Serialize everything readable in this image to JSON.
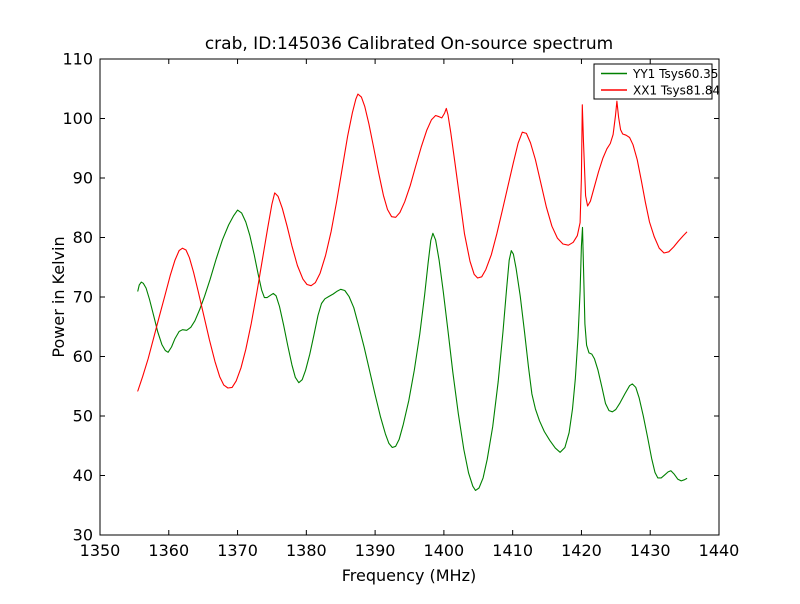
{
  "chart_data": {
    "type": "line",
    "title": "crab, ID:145036 Calibrated On-source spectrum",
    "xlabel": "Frequency (MHz)",
    "ylabel": "Power in Kelvin",
    "xlim": [
      1350,
      1440
    ],
    "ylim": [
      30,
      110
    ],
    "xticks": [
      1350,
      1360,
      1370,
      1380,
      1390,
      1400,
      1410,
      1420,
      1430,
      1440
    ],
    "yticks": [
      30,
      40,
      50,
      60,
      70,
      80,
      90,
      100,
      110
    ],
    "grid": false,
    "legend_position": "upper right",
    "background_color": "#ffffff",
    "axes_color": "#000000",
    "series": [
      {
        "name": "YY1 Tsys60.35",
        "color": "#008000",
        "points": [
          [
            1355.5,
            71.0
          ],
          [
            1355.7,
            72.0
          ],
          [
            1356.0,
            72.5
          ],
          [
            1356.3,
            72.3
          ],
          [
            1356.7,
            71.5
          ],
          [
            1357.2,
            69.6
          ],
          [
            1357.8,
            66.9
          ],
          [
            1358.4,
            64.1
          ],
          [
            1359.0,
            62.0
          ],
          [
            1359.5,
            61.0
          ],
          [
            1359.9,
            60.7
          ],
          [
            1360.4,
            61.6
          ],
          [
            1360.9,
            63.0
          ],
          [
            1361.5,
            64.2
          ],
          [
            1362.0,
            64.5
          ],
          [
            1362.6,
            64.4
          ],
          [
            1363.2,
            64.9
          ],
          [
            1363.8,
            66.0
          ],
          [
            1364.5,
            67.9
          ],
          [
            1365.2,
            70.1
          ],
          [
            1366.0,
            72.9
          ],
          [
            1366.9,
            76.4
          ],
          [
            1367.8,
            79.6
          ],
          [
            1368.7,
            82.1
          ],
          [
            1369.4,
            83.6
          ],
          [
            1370.0,
            84.6
          ],
          [
            1370.6,
            84.1
          ],
          [
            1371.2,
            82.6
          ],
          [
            1371.8,
            80.3
          ],
          [
            1372.4,
            77.2
          ],
          [
            1373.0,
            73.8
          ],
          [
            1373.5,
            71.2
          ],
          [
            1373.9,
            69.9
          ],
          [
            1374.3,
            69.9
          ],
          [
            1374.8,
            70.3
          ],
          [
            1375.2,
            70.6
          ],
          [
            1375.6,
            70.2
          ],
          [
            1376.1,
            68.4
          ],
          [
            1376.7,
            65.3
          ],
          [
            1377.3,
            61.8
          ],
          [
            1377.9,
            58.6
          ],
          [
            1378.4,
            56.5
          ],
          [
            1378.9,
            55.6
          ],
          [
            1379.4,
            56.1
          ],
          [
            1379.9,
            57.7
          ],
          [
            1380.5,
            60.4
          ],
          [
            1381.1,
            63.6
          ],
          [
            1381.7,
            66.9
          ],
          [
            1382.2,
            68.9
          ],
          [
            1382.7,
            69.7
          ],
          [
            1383.3,
            70.1
          ],
          [
            1383.9,
            70.5
          ],
          [
            1384.5,
            71.0
          ],
          [
            1385.0,
            71.3
          ],
          [
            1385.6,
            71.1
          ],
          [
            1386.2,
            70.1
          ],
          [
            1386.9,
            68.2
          ],
          [
            1387.6,
            65.2
          ],
          [
            1388.4,
            61.6
          ],
          [
            1389.2,
            57.6
          ],
          [
            1390.0,
            53.6
          ],
          [
            1390.8,
            49.8
          ],
          [
            1391.5,
            47.0
          ],
          [
            1392.0,
            45.4
          ],
          [
            1392.5,
            44.7
          ],
          [
            1393.0,
            44.9
          ],
          [
            1393.5,
            46.1
          ],
          [
            1394.1,
            48.6
          ],
          [
            1394.9,
            52.6
          ],
          [
            1395.7,
            57.7
          ],
          [
            1396.5,
            63.8
          ],
          [
            1397.2,
            70.3
          ],
          [
            1397.7,
            75.7
          ],
          [
            1398.1,
            79.5
          ],
          [
            1398.4,
            80.7
          ],
          [
            1398.8,
            79.6
          ],
          [
            1399.3,
            76.2
          ],
          [
            1399.9,
            71.0
          ],
          [
            1400.6,
            64.3
          ],
          [
            1401.3,
            57.4
          ],
          [
            1402.1,
            50.4
          ],
          [
            1402.9,
            44.4
          ],
          [
            1403.6,
            40.4
          ],
          [
            1404.2,
            38.2
          ],
          [
            1404.6,
            37.5
          ],
          [
            1405.1,
            37.9
          ],
          [
            1405.7,
            39.6
          ],
          [
            1406.3,
            42.7
          ],
          [
            1407.1,
            48.2
          ],
          [
            1407.9,
            55.8
          ],
          [
            1408.6,
            64.2
          ],
          [
            1409.1,
            71.2
          ],
          [
            1409.5,
            76.2
          ],
          [
            1409.8,
            77.8
          ],
          [
            1410.1,
            77.2
          ],
          [
            1410.5,
            74.8
          ],
          [
            1411.1,
            70.2
          ],
          [
            1411.7,
            64.3
          ],
          [
            1412.3,
            58.2
          ],
          [
            1412.8,
            53.7
          ],
          [
            1413.3,
            51.2
          ],
          [
            1413.9,
            49.2
          ],
          [
            1414.6,
            47.4
          ],
          [
            1415.4,
            45.9
          ],
          [
            1416.2,
            44.6
          ],
          [
            1416.9,
            43.9
          ],
          [
            1417.6,
            44.7
          ],
          [
            1418.2,
            47.2
          ],
          [
            1418.7,
            51.2
          ],
          [
            1419.1,
            56.2
          ],
          [
            1419.5,
            63.2
          ],
          [
            1419.8,
            71.0
          ],
          [
            1420.0,
            78.5
          ],
          [
            1420.15,
            81.7
          ],
          [
            1420.3,
            75.0
          ],
          [
            1420.5,
            65.5
          ],
          [
            1420.75,
            61.9
          ],
          [
            1421.1,
            60.6
          ],
          [
            1421.5,
            60.4
          ],
          [
            1421.9,
            59.6
          ],
          [
            1422.4,
            57.7
          ],
          [
            1423.0,
            54.7
          ],
          [
            1423.5,
            52.1
          ],
          [
            1424.0,
            50.9
          ],
          [
            1424.5,
            50.7
          ],
          [
            1425.0,
            51.1
          ],
          [
            1425.6,
            52.2
          ],
          [
            1426.3,
            53.7
          ],
          [
            1427.0,
            55.1
          ],
          [
            1427.4,
            55.4
          ],
          [
            1427.9,
            54.8
          ],
          [
            1428.4,
            53.0
          ],
          [
            1429.0,
            50.0
          ],
          [
            1429.6,
            46.5
          ],
          [
            1430.2,
            42.9
          ],
          [
            1430.7,
            40.5
          ],
          [
            1431.1,
            39.6
          ],
          [
            1431.6,
            39.6
          ],
          [
            1432.1,
            40.1
          ],
          [
            1432.6,
            40.6
          ],
          [
            1433.0,
            40.8
          ],
          [
            1433.5,
            40.2
          ],
          [
            1434.0,
            39.4
          ],
          [
            1434.5,
            39.1
          ],
          [
            1435.0,
            39.3
          ],
          [
            1435.3,
            39.5
          ]
        ]
      },
      {
        "name": "XX1 Tsys81.84",
        "color": "#ff0000",
        "points": [
          [
            1355.5,
            54.2
          ],
          [
            1356.2,
            56.6
          ],
          [
            1357.0,
            59.6
          ],
          [
            1357.8,
            63.1
          ],
          [
            1358.6,
            66.6
          ],
          [
            1359.4,
            70.1
          ],
          [
            1360.2,
            73.6
          ],
          [
            1360.9,
            76.2
          ],
          [
            1361.5,
            77.8
          ],
          [
            1362.0,
            78.2
          ],
          [
            1362.5,
            77.9
          ],
          [
            1363.0,
            76.6
          ],
          [
            1363.6,
            74.2
          ],
          [
            1364.3,
            70.8
          ],
          [
            1365.1,
            66.8
          ],
          [
            1365.9,
            62.8
          ],
          [
            1366.7,
            59.2
          ],
          [
            1367.4,
            56.6
          ],
          [
            1368.0,
            55.2
          ],
          [
            1368.6,
            54.7
          ],
          [
            1369.2,
            54.8
          ],
          [
            1369.8,
            55.9
          ],
          [
            1370.5,
            58.1
          ],
          [
            1371.2,
            61.2
          ],
          [
            1372.0,
            65.6
          ],
          [
            1372.8,
            70.7
          ],
          [
            1373.6,
            76.2
          ],
          [
            1374.4,
            81.7
          ],
          [
            1375.0,
            85.6
          ],
          [
            1375.4,
            87.5
          ],
          [
            1375.9,
            86.9
          ],
          [
            1376.5,
            84.9
          ],
          [
            1377.2,
            81.9
          ],
          [
            1377.9,
            78.6
          ],
          [
            1378.7,
            75.3
          ],
          [
            1379.5,
            73.0
          ],
          [
            1380.1,
            72.1
          ],
          [
            1380.7,
            71.9
          ],
          [
            1381.3,
            72.4
          ],
          [
            1382.0,
            74.0
          ],
          [
            1382.8,
            77.0
          ],
          [
            1383.6,
            81.0
          ],
          [
            1384.4,
            86.0
          ],
          [
            1385.2,
            91.5
          ],
          [
            1386.0,
            97.0
          ],
          [
            1386.7,
            101.0
          ],
          [
            1387.2,
            103.3
          ],
          [
            1387.5,
            104.1
          ],
          [
            1388.0,
            103.6
          ],
          [
            1388.5,
            102.0
          ],
          [
            1389.1,
            99.1
          ],
          [
            1389.8,
            95.1
          ],
          [
            1390.5,
            90.9
          ],
          [
            1391.2,
            87.1
          ],
          [
            1391.8,
            84.7
          ],
          [
            1392.4,
            83.5
          ],
          [
            1393.0,
            83.4
          ],
          [
            1393.6,
            84.2
          ],
          [
            1394.3,
            86.0
          ],
          [
            1395.1,
            88.7
          ],
          [
            1395.9,
            92.0
          ],
          [
            1396.7,
            95.2
          ],
          [
            1397.5,
            98.0
          ],
          [
            1398.2,
            99.8
          ],
          [
            1398.8,
            100.5
          ],
          [
            1399.3,
            100.3
          ],
          [
            1399.7,
            100.1
          ],
          [
            1400.1,
            100.9
          ],
          [
            1400.35,
            101.7
          ],
          [
            1400.6,
            100.6
          ],
          [
            1401.0,
            97.6
          ],
          [
            1401.6,
            92.6
          ],
          [
            1402.3,
            86.6
          ],
          [
            1403.0,
            80.6
          ],
          [
            1403.8,
            76.0
          ],
          [
            1404.4,
            73.8
          ],
          [
            1404.9,
            73.2
          ],
          [
            1405.5,
            73.4
          ],
          [
            1406.1,
            74.6
          ],
          [
            1406.9,
            77.1
          ],
          [
            1407.7,
            80.6
          ],
          [
            1408.5,
            84.6
          ],
          [
            1409.3,
            88.6
          ],
          [
            1410.1,
            92.6
          ],
          [
            1410.8,
            95.9
          ],
          [
            1411.4,
            97.7
          ],
          [
            1412.0,
            97.5
          ],
          [
            1412.6,
            95.9
          ],
          [
            1413.3,
            93.1
          ],
          [
            1414.1,
            89.1
          ],
          [
            1414.9,
            85.1
          ],
          [
            1415.7,
            81.9
          ],
          [
            1416.5,
            79.9
          ],
          [
            1417.3,
            78.9
          ],
          [
            1418.1,
            78.7
          ],
          [
            1418.8,
            79.2
          ],
          [
            1419.4,
            80.3
          ],
          [
            1419.8,
            82.5
          ],
          [
            1420.0,
            90.0
          ],
          [
            1420.12,
            102.3
          ],
          [
            1420.3,
            96.0
          ],
          [
            1420.6,
            87.0
          ],
          [
            1420.9,
            85.3
          ],
          [
            1421.3,
            86.1
          ],
          [
            1421.9,
            88.6
          ],
          [
            1422.5,
            91.1
          ],
          [
            1423.1,
            93.3
          ],
          [
            1423.7,
            94.9
          ],
          [
            1424.2,
            95.8
          ],
          [
            1424.6,
            97.3
          ],
          [
            1424.95,
            100.5
          ],
          [
            1425.15,
            102.9
          ],
          [
            1425.4,
            100.2
          ],
          [
            1425.7,
            98.1
          ],
          [
            1426.0,
            97.4
          ],
          [
            1426.5,
            97.2
          ],
          [
            1427.0,
            96.8
          ],
          [
            1427.5,
            95.6
          ],
          [
            1428.1,
            93.1
          ],
          [
            1428.7,
            89.6
          ],
          [
            1429.3,
            85.9
          ],
          [
            1429.9,
            82.6
          ],
          [
            1430.6,
            80.1
          ],
          [
            1431.3,
            78.2
          ],
          [
            1432.0,
            77.4
          ],
          [
            1432.7,
            77.6
          ],
          [
            1433.4,
            78.4
          ],
          [
            1434.1,
            79.4
          ],
          [
            1434.8,
            80.3
          ],
          [
            1435.3,
            80.9
          ]
        ]
      }
    ]
  }
}
